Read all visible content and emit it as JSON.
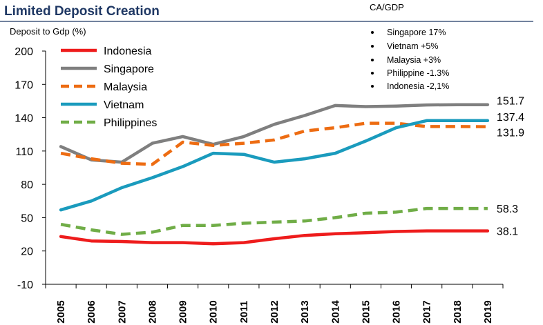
{
  "chart_data": {
    "type": "line",
    "title": "Limited Deposit Creation",
    "ylabel": "Deposit to Gdp (%)",
    "xlabel": "",
    "ylim": [
      -10,
      200
    ],
    "yticks": [
      -10,
      20,
      50,
      80,
      110,
      140,
      170,
      200
    ],
    "ytick_labels": [
      "-10",
      "20",
      "50",
      "80",
      "110",
      "140",
      "170",
      "200"
    ],
    "x": [
      2005,
      2006,
      2007,
      2008,
      2009,
      2010,
      2011,
      2012,
      2013,
      2014,
      2015,
      2016,
      2017,
      2018,
      2019
    ],
    "categories": [
      "2005",
      "2006",
      "2007",
      "2008",
      "2009",
      "2010",
      "2011",
      "2012",
      "2013",
      "2014",
      "2015",
      "2016",
      "2017",
      "2018",
      "2019"
    ],
    "legend_position": "top-left",
    "series": [
      {
        "name": "Indonesia",
        "color": "#ee1c1c",
        "dash": "solid",
        "values": [
          33,
          29,
          28.5,
          27.5,
          27.5,
          26.5,
          27.5,
          31,
          34,
          35.5,
          36.5,
          37.5,
          38.1,
          38.1,
          38.1
        ],
        "end_label": "38.1"
      },
      {
        "name": "Singapore",
        "color": "#7f7f7f",
        "dash": "solid",
        "values": [
          114,
          102,
          100,
          117,
          123,
          116,
          123,
          134,
          142,
          151,
          150,
          150.5,
          151.5,
          151.7,
          151.7
        ],
        "end_label": "151.7"
      },
      {
        "name": "Malaysia",
        "color": "#ed6c12",
        "dash": "dashed",
        "values": [
          108,
          103,
          99,
          98,
          118,
          115,
          117,
          120,
          128,
          131,
          135,
          135,
          132,
          132,
          131.9
        ],
        "end_label": "131.9"
      },
      {
        "name": "Vietnam",
        "color": "#1a9bbd",
        "dash": "solid",
        "values": [
          57,
          65,
          77,
          86,
          96,
          108,
          107,
          100,
          103,
          108,
          119,
          131,
          137.4,
          137.4,
          137.4
        ],
        "end_label": "137.4"
      },
      {
        "name": "Philippines",
        "color": "#70ad47",
        "dash": "dashed",
        "values": [
          44,
          39,
          35,
          37,
          43,
          43,
          45,
          46,
          47,
          50,
          54,
          55,
          58.3,
          58.3,
          58.3
        ],
        "end_label": "58.3"
      }
    ],
    "annotations": {
      "ca_gdp_header": "CA/GDP",
      "notes": [
        "Singapore 17%",
        "Vietnam +5%",
        "Malaysia +3%",
        "Philippine -1.3%",
        "Indonesia -2,1%"
      ]
    }
  },
  "colors": {
    "title": "#1f3864",
    "axis": "#000000",
    "background": "#ffffff"
  }
}
